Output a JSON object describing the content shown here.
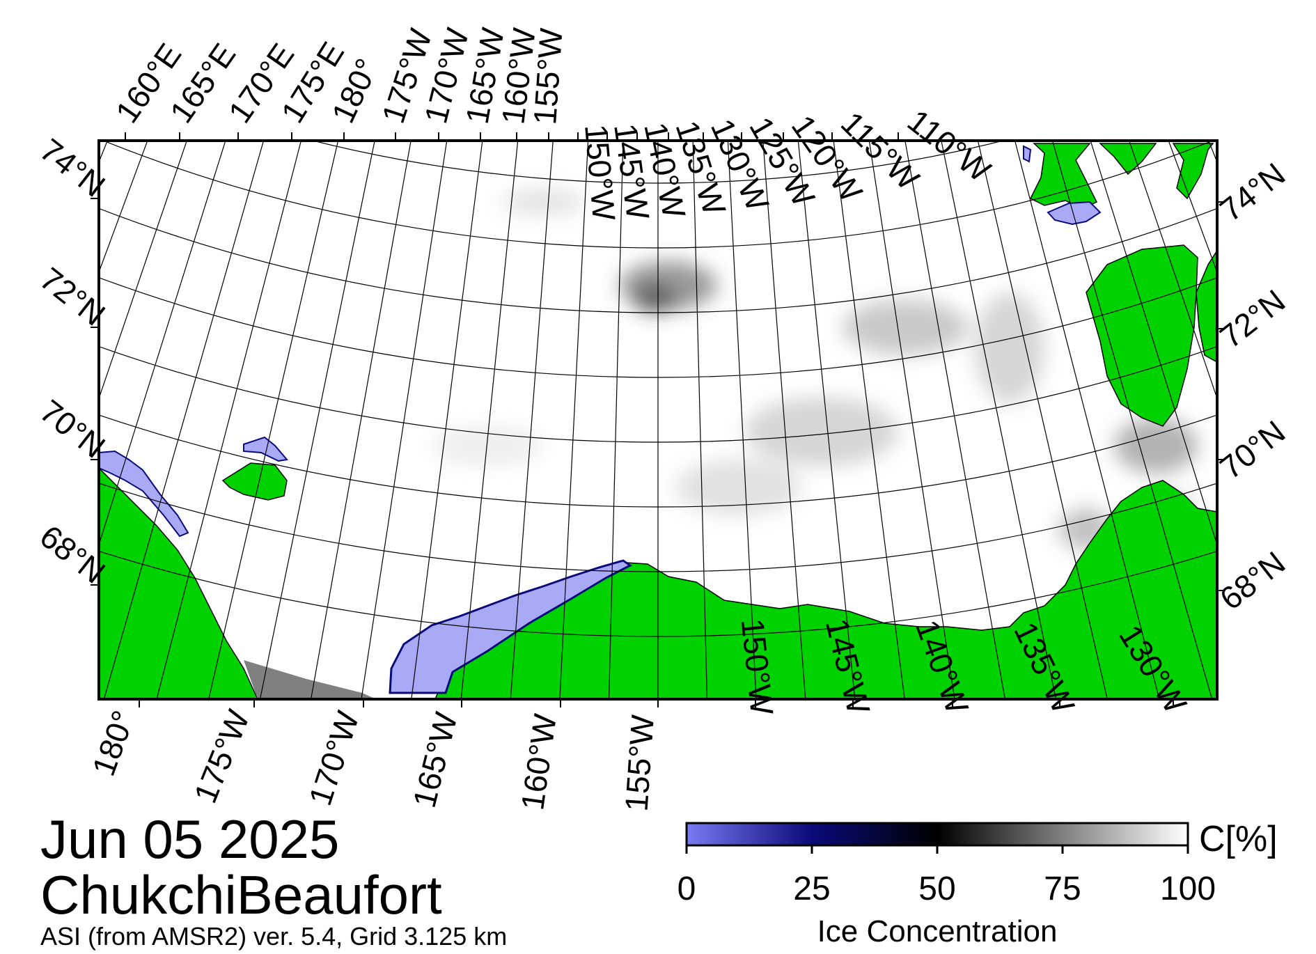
{
  "map": {
    "date": "Jun 05 2025",
    "region": "ChukchiBeaufort",
    "product": "ASI (from AMSR2) ver. 5.4,  Grid 3.125 km",
    "top_lon_labels": [
      "160°E",
      "165°E",
      "170°E",
      "175°E",
      "180°",
      "175°W",
      "170°W",
      "165°W",
      "160°W",
      "155°W",
      "150°W",
      "145°W",
      "140°W",
      "135°W",
      "130°W",
      "125°W",
      "120°W",
      "115°W",
      "110°W"
    ],
    "bottom_lon_labels": [
      "180°",
      "175°W",
      "170°W",
      "165°W",
      "160°W",
      "155°W",
      "150°W",
      "145°W",
      "140°W",
      "135°W",
      "130°W"
    ],
    "left_lat_labels": [
      "74°N",
      "72°N",
      "70°N",
      "68°N"
    ],
    "right_lat_labels": [
      "74°N",
      "72°N",
      "70°N",
      "68°N"
    ],
    "colors": {
      "land": "#00d200",
      "low_concentration_ice": "#a9a9f5",
      "ocean_open": "#ffffff",
      "no_data": "#808080",
      "graticule": "#000000"
    }
  },
  "colorbar": {
    "ticks": [
      "0",
      "25",
      "50",
      "75",
      "100"
    ],
    "unit": "C[%]",
    "label": "Ice Concentration",
    "stops": [
      "#7a7af2",
      "#0a0a7a",
      "#000000",
      "#808080",
      "#ffffff"
    ]
  }
}
